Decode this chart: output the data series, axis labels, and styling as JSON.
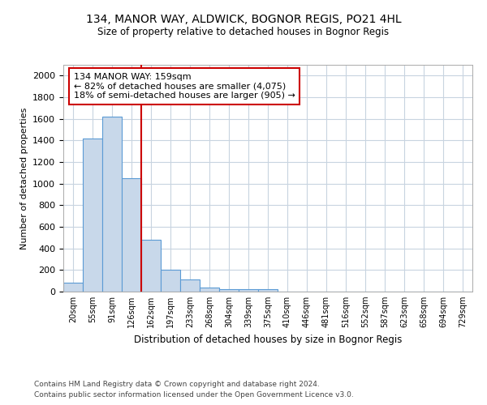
{
  "title1": "134, MANOR WAY, ALDWICK, BOGNOR REGIS, PO21 4HL",
  "title2": "Size of property relative to detached houses in Bognor Regis",
  "xlabel": "Distribution of detached houses by size in Bognor Regis",
  "ylabel": "Number of detached properties",
  "footer1": "Contains HM Land Registry data © Crown copyright and database right 2024.",
  "footer2": "Contains public sector information licensed under the Open Government Licence v3.0.",
  "categories": [
    "20sqm",
    "55sqm",
    "91sqm",
    "126sqm",
    "162sqm",
    "197sqm",
    "233sqm",
    "268sqm",
    "304sqm",
    "339sqm",
    "375sqm",
    "410sqm",
    "446sqm",
    "481sqm",
    "516sqm",
    "552sqm",
    "587sqm",
    "623sqm",
    "658sqm",
    "694sqm",
    "729sqm"
  ],
  "values": [
    80,
    1420,
    1620,
    1050,
    480,
    200,
    110,
    40,
    20,
    20,
    20,
    0,
    0,
    0,
    0,
    0,
    0,
    0,
    0,
    0,
    0
  ],
  "bar_color": "#c8d8ea",
  "bar_edge_color": "#5b9bd5",
  "vline_index": 4,
  "vline_color": "#cc0000",
  "ylim_max": 2100,
  "yticks": [
    0,
    200,
    400,
    600,
    800,
    1000,
    1200,
    1400,
    1600,
    1800,
    2000
  ],
  "annotation_text": "134 MANOR WAY: 159sqm\n← 82% of detached houses are smaller (4,075)\n18% of semi-detached houses are larger (905) →",
  "annotation_box_facecolor": "#ffffff",
  "annotation_box_edgecolor": "#cc0000",
  "grid_color": "#c8d4e0",
  "plot_bg_color": "#ffffff"
}
